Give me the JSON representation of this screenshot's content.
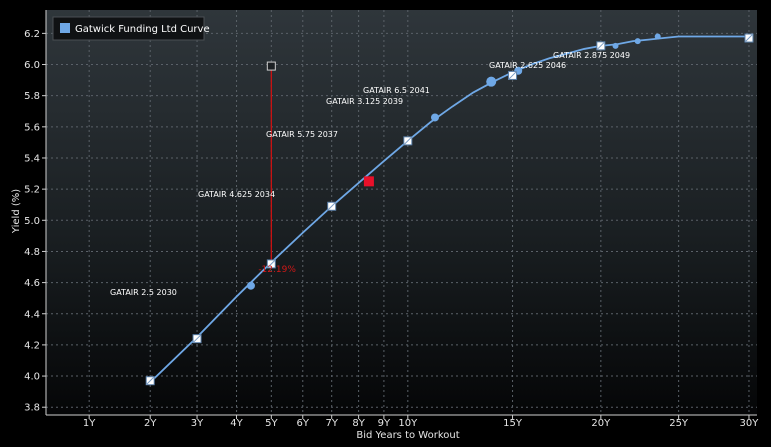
{
  "chart_data": {
    "type": "scatter",
    "title": "",
    "xlabel": "Bid Years to Workout",
    "ylabel": "Yield (%)",
    "ylim": [
      3.75,
      6.35
    ],
    "xlim": [
      0.5,
      30.6
    ],
    "grid": true,
    "legend_position": "top-left",
    "x_ticks": [
      {
        "value": 1,
        "label": "1Y"
      },
      {
        "value": 2,
        "label": "2Y"
      },
      {
        "value": 3,
        "label": "3Y"
      },
      {
        "value": 4,
        "label": "4Y"
      },
      {
        "value": 5,
        "label": "5Y"
      },
      {
        "value": 6,
        "label": "6Y"
      },
      {
        "value": 7,
        "label": "7Y"
      },
      {
        "value": 8,
        "label": "8Y"
      },
      {
        "value": 9,
        "label": "9Y"
      },
      {
        "value": 10,
        "label": "10Y"
      },
      {
        "value": 15,
        "label": "15Y"
      },
      {
        "value": 20,
        "label": "20Y"
      },
      {
        "value": 25,
        "label": "25Y"
      },
      {
        "value": 30,
        "label": "30Y"
      }
    ],
    "y_ticks": [
      "3.8",
      "4.0",
      "4.2",
      "4.4",
      "4.6",
      "4.8",
      "5.0",
      "5.2",
      "5.4",
      "5.6",
      "5.8",
      "6.0",
      "6.2"
    ],
    "series": [
      {
        "name": "Gatwick Funding Ltd Curve",
        "kind": "fitted_curve",
        "color": "#6fa8e6",
        "x": [
          2.0,
          3.0,
          4.0,
          5.0,
          6.0,
          7.0,
          8.0,
          9.0,
          10.0,
          11.0,
          12.0,
          13.0,
          14.0,
          15.0,
          16.0,
          17.0,
          18.0,
          19.0,
          20.0,
          21.0,
          22.0,
          23.0,
          24.0,
          25.0,
          26.0,
          27.0,
          28.0,
          29.0,
          30.0
        ],
        "y": [
          3.96,
          4.25,
          4.51,
          4.73,
          4.92,
          5.09,
          5.24,
          5.38,
          5.51,
          5.63,
          5.73,
          5.82,
          5.89,
          5.95,
          6.0,
          6.04,
          6.07,
          6.1,
          6.12,
          6.13,
          6.15,
          6.16,
          6.17,
          6.18,
          6.18,
          6.18,
          6.18,
          6.18,
          6.18
        ]
      },
      {
        "name": "",
        "kind": "bonds_circle",
        "color": "#6fa8e6",
        "points": [
          {
            "x": 4.4,
            "y": 4.58,
            "label": "GATAIR 2.5 2030",
            "r": 4
          },
          {
            "x": 11.2,
            "y": 5.66,
            "label": "GATAIR 5.75 2037",
            "r": 4
          },
          {
            "x": 13.9,
            "y": 5.89,
            "label": "GATAIR 3.125 2039",
            "r": 5
          },
          {
            "x": 15.3,
            "y": 5.96,
            "label": "GATAIR 6.5 2041",
            "r": 4
          },
          {
            "x": 20.9,
            "y": 6.12,
            "label": "",
            "r": 3
          },
          {
            "x": 22.3,
            "y": 6.15,
            "label": "",
            "r": 3
          },
          {
            "x": 23.6,
            "y": 6.18,
            "label": "GATAIR 2.875 2049",
            "r": 3
          }
        ]
      },
      {
        "name": "",
        "kind": "bonds_square",
        "color": "#ffffff",
        "points": [
          {
            "x": 2.0,
            "y": 3.97,
            "label": ""
          },
          {
            "x": 3.0,
            "y": 4.24,
            "label": ""
          },
          {
            "x": 5.0,
            "y": 4.72,
            "label": ""
          },
          {
            "x": 7.0,
            "y": 5.09,
            "label": ""
          },
          {
            "x": 10.0,
            "y": 5.51,
            "label": ""
          },
          {
            "x": 15.0,
            "y": 5.93,
            "label": ""
          },
          {
            "x": 20.0,
            "y": 6.12,
            "label": "GATAIR 2.625 2046"
          },
          {
            "x": 30.0,
            "y": 6.17,
            "label": ""
          }
        ]
      },
      {
        "name": "",
        "kind": "highlight",
        "color": "#e8102a",
        "points": [
          {
            "x": 8.4,
            "y": 5.25,
            "label": "GATAIR 4.625 2034"
          }
        ]
      }
    ],
    "annotations": [
      {
        "type": "spread_line",
        "x": 5.0,
        "y_top": 5.99,
        "y_bottom": 4.72,
        "color": "#cc1111",
        "label": "-12.19%"
      }
    ]
  }
}
